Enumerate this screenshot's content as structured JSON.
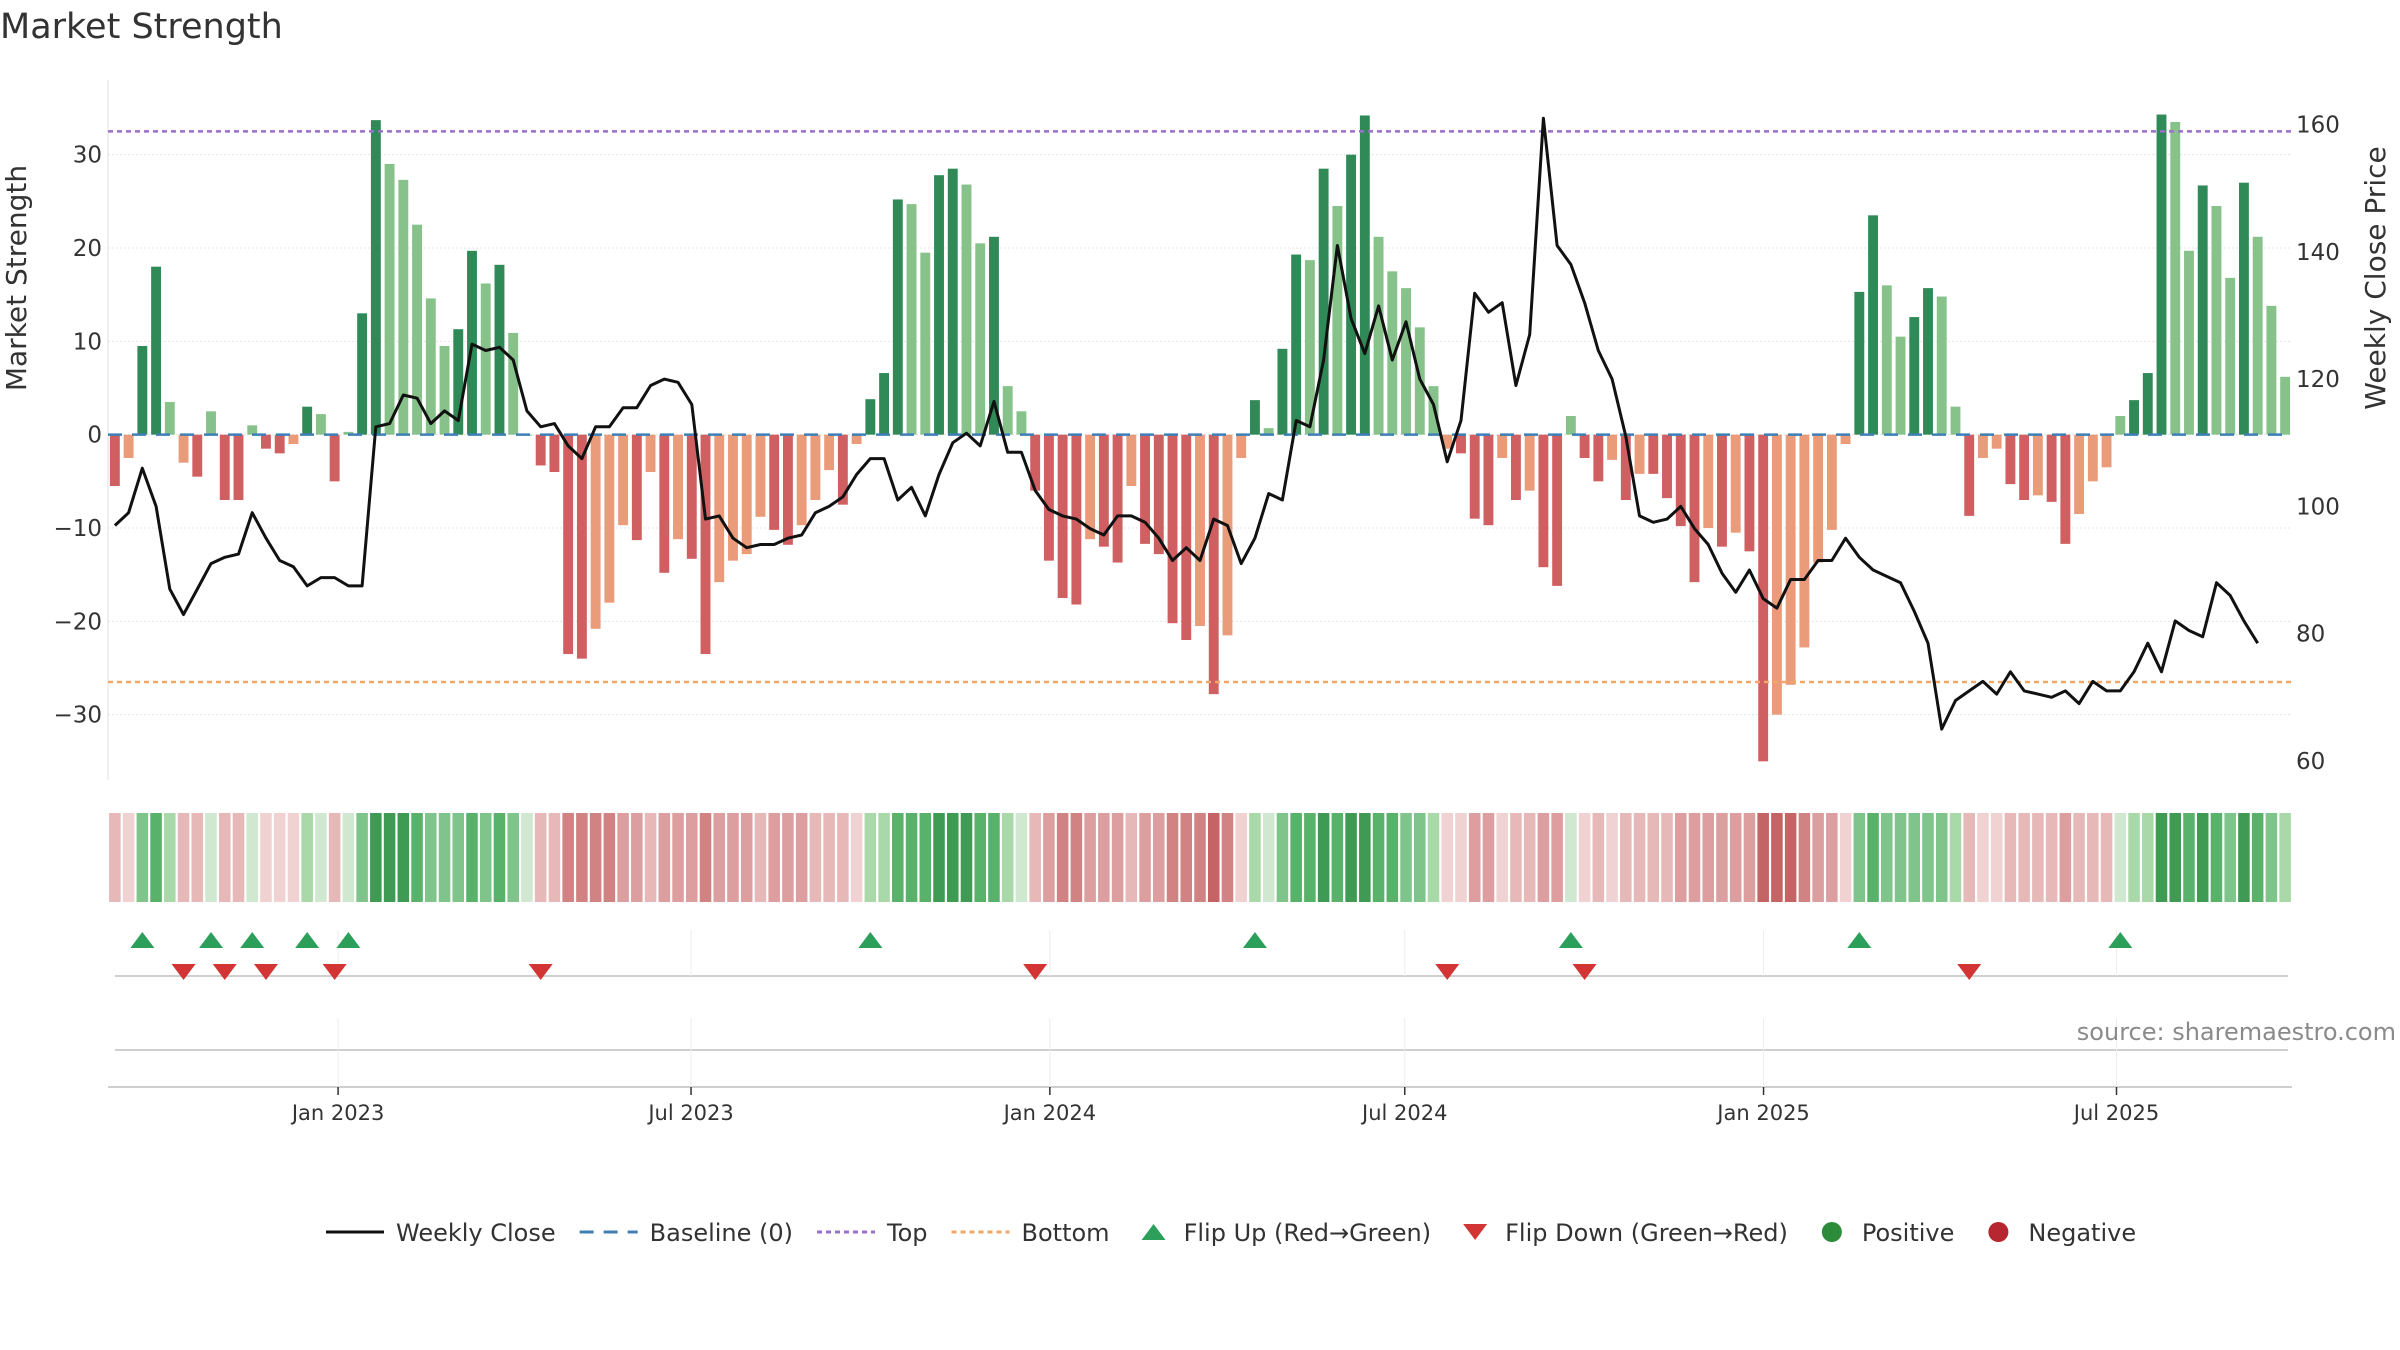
{
  "chart_data": {
    "type": "bar+line",
    "title": "Market Strength",
    "ylabel_left": "Market Strength",
    "ylabel_right": "Weekly Close Price",
    "left_ylim": [
      -37,
      38
    ],
    "right_ylim": [
      57,
      167
    ],
    "left_ticks": [
      30,
      20,
      10,
      0,
      -10,
      -20,
      -30
    ],
    "left_tick_labels": [
      "30",
      "20",
      "10",
      "0",
      "−10",
      "−20",
      "−30"
    ],
    "right_ticks": [
      160,
      140,
      120,
      100,
      80,
      60
    ],
    "right_tick_labels": [
      "160",
      "140",
      "120",
      "100",
      "80",
      "60"
    ],
    "top_level": 32.5,
    "bottom_level": -26.5,
    "x_start": "2022-09-05",
    "x_end": "2025-09-29",
    "x_ticks": [
      {
        "date": "2023-01-01",
        "label": "Jan 2023"
      },
      {
        "date": "2023-07-01",
        "label": "Jul 2023"
      },
      {
        "date": "2024-01-01",
        "label": "Jan 2024"
      },
      {
        "date": "2024-07-01",
        "label": "Jul 2024"
      },
      {
        "date": "2025-01-01",
        "label": "Jan 2025"
      },
      {
        "date": "2025-07-01",
        "label": "Jul 2025"
      }
    ],
    "strength": [
      -5.5,
      -2.5,
      9.5,
      18,
      3.5,
      -3,
      -4.5,
      2.5,
      -7,
      -7,
      1,
      -1.5,
      -2,
      -1,
      3,
      2.2,
      -5,
      0.3,
      13,
      33.7,
      29,
      27.3,
      22.5,
      14.6,
      9.5,
      11.3,
      19.7,
      16.2,
      18.2,
      10.9,
      0,
      -3.3,
      -4,
      -23.5,
      -24,
      -20.8,
      -18,
      -9.7,
      -11.3,
      -4,
      -14.8,
      -11.2,
      -13.3,
      -23.5,
      -15.8,
      -13.5,
      -12.8,
      -8.8,
      -10.2,
      -11.8,
      -9.7,
      -7,
      -3.8,
      -7.5,
      -1,
      3.8,
      6.6,
      25.2,
      24.7,
      19.5,
      27.8,
      28.5,
      26.8,
      20.5,
      21.2,
      5.2,
      2.5,
      -6,
      -13.5,
      -17.5,
      -18.2,
      -11.2,
      -12,
      -13.7,
      -5.5,
      -11.7,
      -12.8,
      -20.2,
      -22,
      -20.5,
      -27.8,
      -21.5,
      -2.5,
      3.7,
      0.7,
      9.2,
      19.3,
      18.7,
      28.5,
      24.5,
      30,
      34.2,
      21.2,
      17.5,
      15.7,
      11.5,
      5.2,
      -1.5,
      -2,
      -9,
      -9.7,
      -2.5,
      -7,
      -6,
      -14.2,
      -16.2,
      2,
      -2.5,
      -5,
      -2.7,
      -7,
      -4.2,
      -4.2,
      -6.8,
      -9.8,
      -15.8,
      -10,
      -12,
      -10.5,
      -12.5,
      -35,
      -30,
      -26.8,
      -22.8,
      -13.7,
      -10.2,
      -1,
      15.3,
      23.5,
      16,
      10.5,
      12.6,
      15.7,
      14.8,
      3,
      -8.7,
      -2.5,
      -1.5,
      -5.3,
      -7,
      -6.5,
      -7.2,
      -11.7,
      -8.5,
      -5,
      -3.5,
      2,
      3.7,
      6.6,
      34.3,
      33.5,
      19.7,
      26.7,
      24.5,
      16.8,
      27,
      21.2,
      13.8,
      6.2
    ],
    "price": [
      97,
      99,
      106,
      100,
      87,
      83,
      87,
      91,
      92,
      92.5,
      99,
      95,
      91.5,
      90.5,
      87.5,
      88.8,
      88.8,
      87.5,
      87.5,
      112.5,
      113,
      117.5,
      117,
      113,
      115,
      113.5,
      125.5,
      124.5,
      125,
      123,
      115,
      112.5,
      113,
      109.5,
      107.5,
      112.5,
      112.5,
      115.5,
      115.5,
      119,
      120,
      119.5,
      116,
      98,
      98.5,
      95,
      93.5,
      94,
      94,
      95,
      95.5,
      99,
      100,
      101.5,
      105,
      107.5,
      107.5,
      101,
      103,
      98.5,
      105,
      110,
      111.5,
      109.5,
      116.5,
      108.5,
      108.5,
      102.5,
      99.5,
      98.5,
      98,
      96.5,
      95.5,
      98.5,
      98.5,
      97.5,
      95,
      91.5,
      93.5,
      91.5,
      98,
      97,
      91,
      95,
      102,
      101,
      113.5,
      112.5,
      123,
      141,
      129.5,
      124,
      131.5,
      123,
      129,
      120,
      116,
      107,
      113.5,
      133.5,
      130.5,
      132,
      119,
      127,
      161,
      141,
      138,
      132,
      124.5,
      120,
      111,
      98.5,
      97.5,
      98,
      100,
      96.5,
      94,
      89.5,
      86.5,
      90,
      85.5,
      84,
      88.5,
      88.5,
      91.5,
      91.5,
      95,
      92,
      90,
      89,
      88,
      83.5,
      78.5,
      65,
      69.5,
      71,
      72.5,
      70.5,
      74,
      71,
      70.5,
      70,
      71,
      69,
      72.5,
      71,
      71,
      74,
      78.5,
      74,
      82,
      80.5,
      79.5,
      88,
      86,
      82,
      78.5
    ]
  },
  "legend": [
    {
      "symbol": "line-solid",
      "color": "#111111",
      "label": "Weekly Close"
    },
    {
      "symbol": "line-dashed",
      "color": "#3f7fb6",
      "label": "Baseline (0)"
    },
    {
      "symbol": "line-dotted",
      "color": "#9a6fce",
      "label": "Top"
    },
    {
      "symbol": "line-dotted",
      "color": "#efa868",
      "label": "Bottom"
    },
    {
      "symbol": "triangle-up",
      "color": "#2ca05a",
      "label": "Flip Up (Red→Green)"
    },
    {
      "symbol": "triangle-down",
      "color": "#d33535",
      "label": "Flip Down (Green→Red)"
    },
    {
      "symbol": "circle",
      "color": "#2d8c3c",
      "label": "Positive"
    },
    {
      "symbol": "circle",
      "color": "#b5262f",
      "label": "Negative"
    }
  ],
  "source": "source: sharemaestro.com",
  "colors": {
    "pos_dark": "#2f8a57",
    "pos_light": "#86c28a",
    "neg_dark": "#cf5f61",
    "neg_light": "#ea9b7a",
    "price_line": "#111111",
    "baseline": "#3f7fb6",
    "top": "#9a6fce",
    "bottom": "#efa868",
    "flip_up": "#2ca05a",
    "flip_down": "#d33535"
  }
}
